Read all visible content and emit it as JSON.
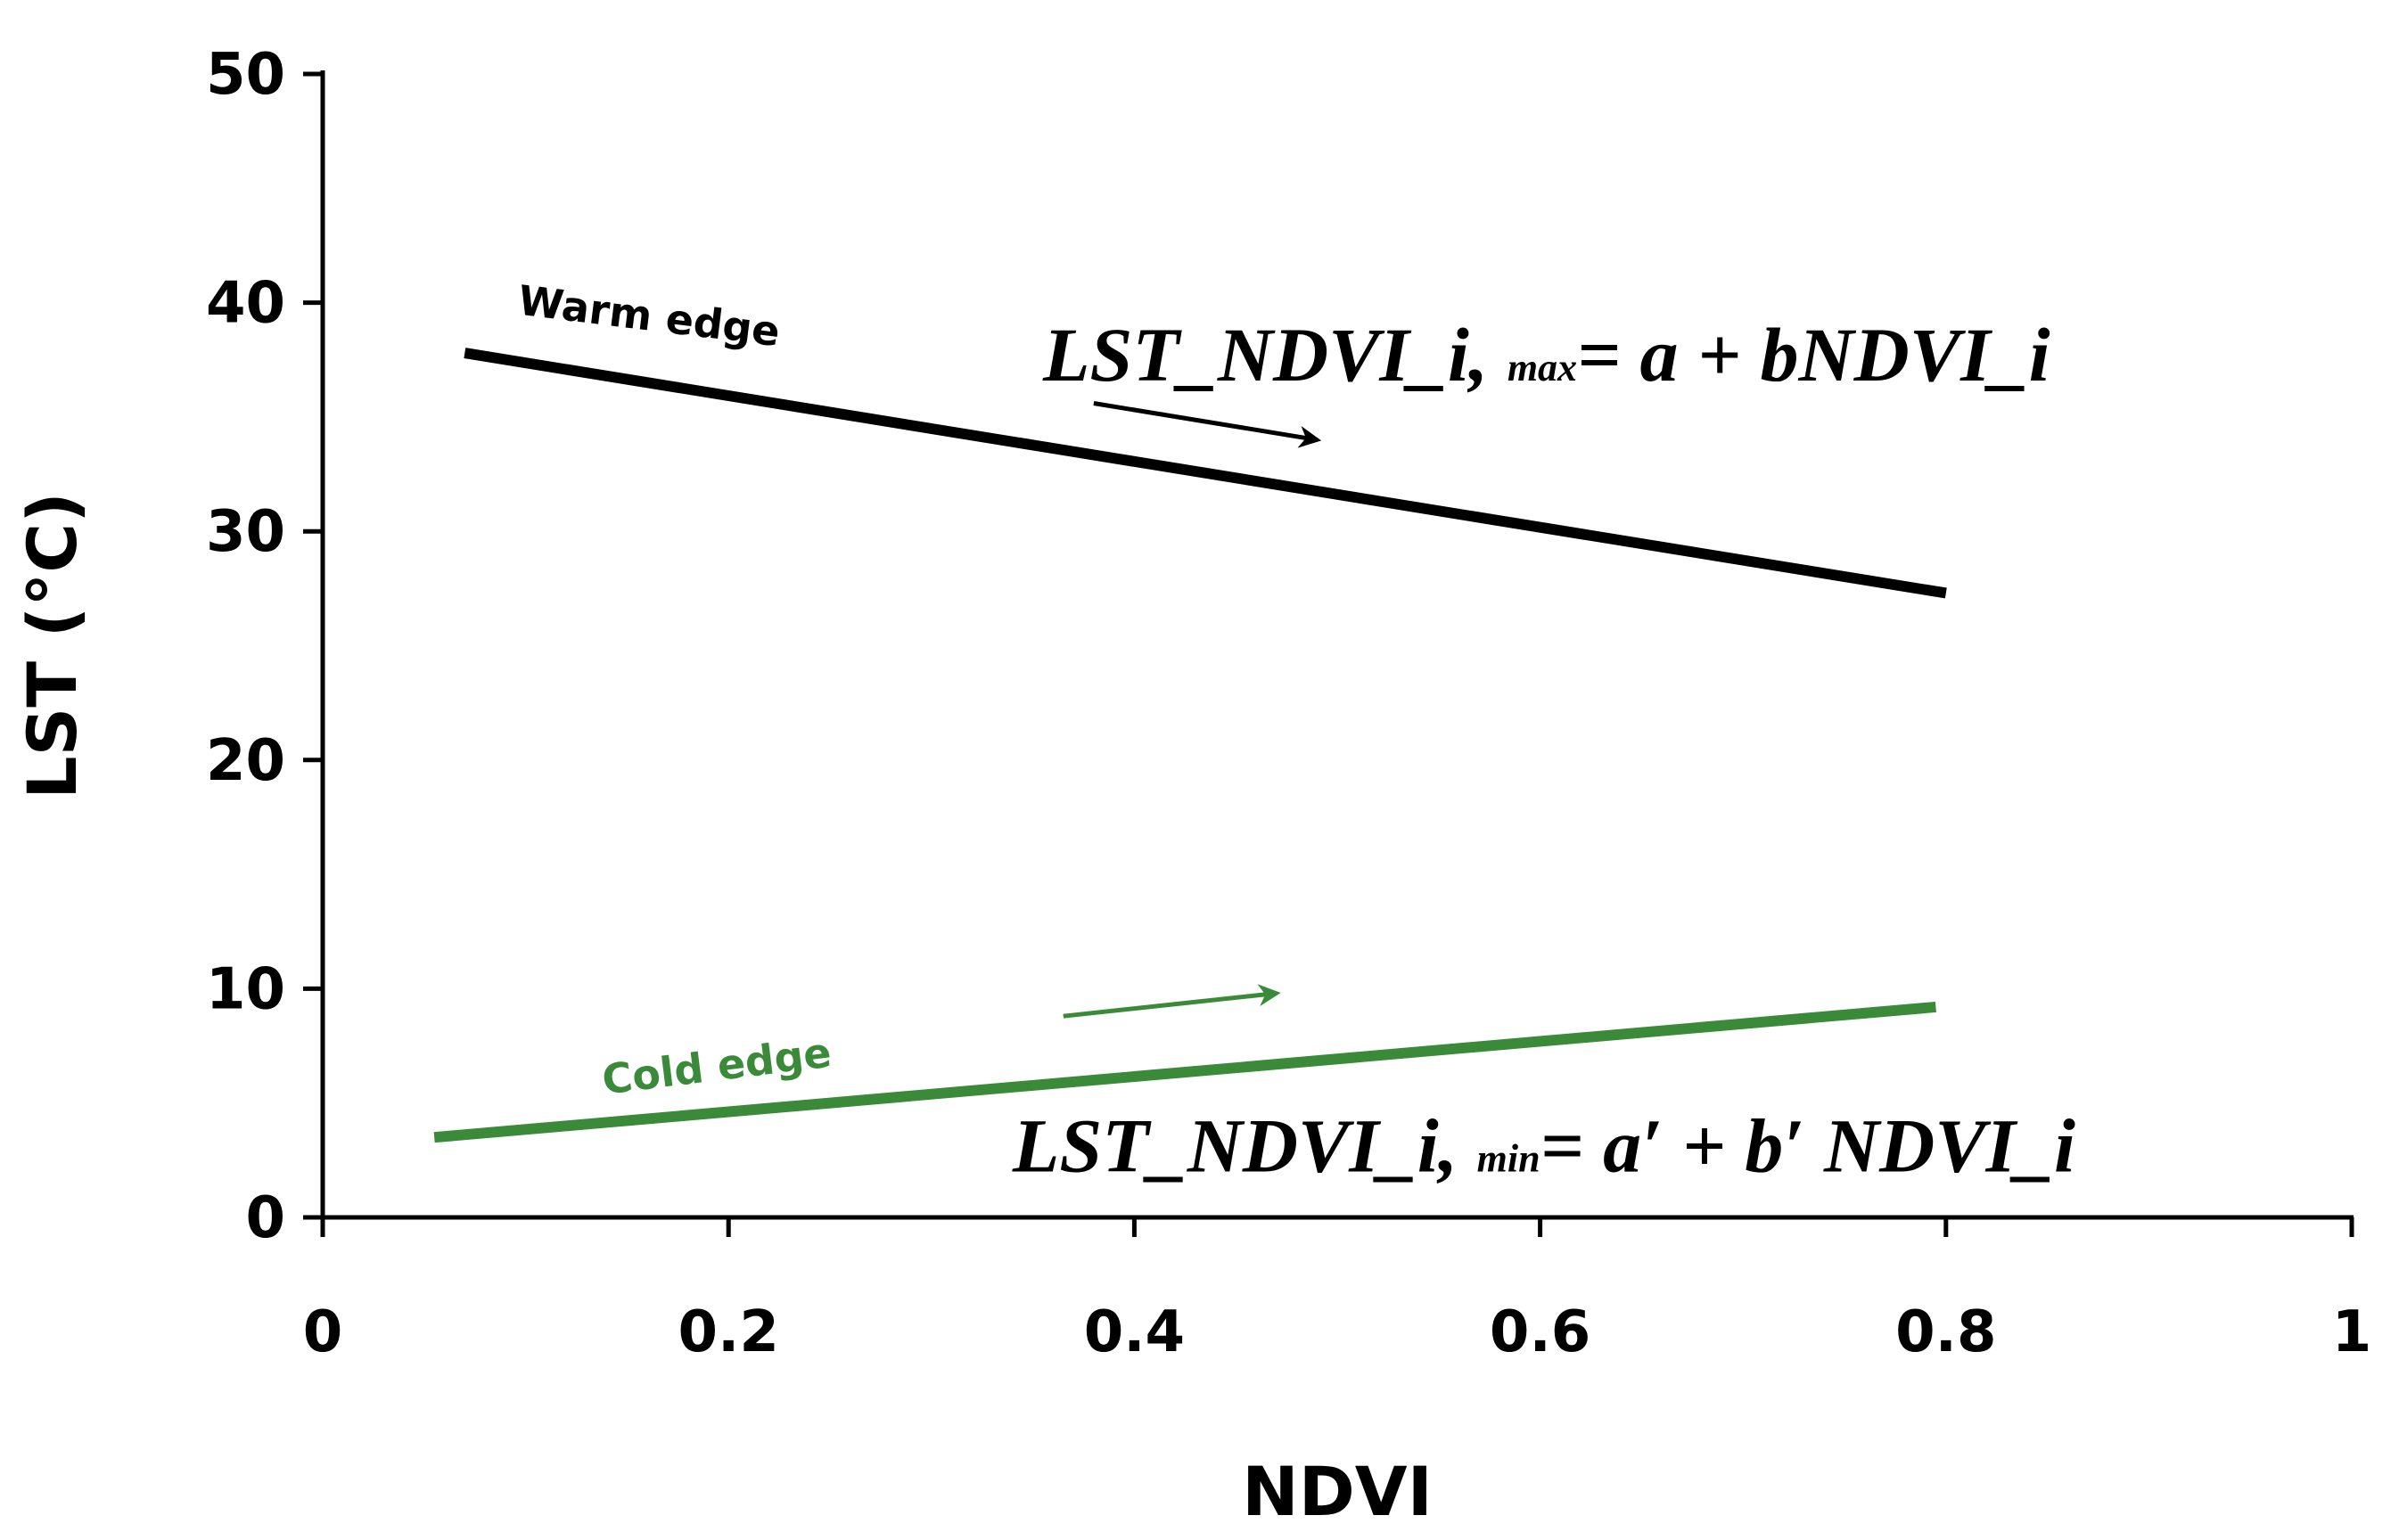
{
  "chart_data": {
    "type": "line",
    "title": "",
    "xlabel": "NDVI",
    "ylabel": "LST (°C)",
    "xlim": [
      0,
      1
    ],
    "ylim": [
      0,
      50
    ],
    "xticks": [
      {
        "value": 0,
        "label": "0"
      },
      {
        "value": 0.2,
        "label": "0.2"
      },
      {
        "value": 0.4,
        "label": "0.4"
      },
      {
        "value": 0.6,
        "label": "0.6"
      },
      {
        "value": 0.8,
        "label": "0.8"
      },
      {
        "value": 1,
        "label": "1"
      }
    ],
    "yticks": [
      {
        "value": 0,
        "label": "0"
      },
      {
        "value": 10,
        "label": "10"
      },
      {
        "value": 20,
        "label": "20"
      },
      {
        "value": 30,
        "label": "30"
      },
      {
        "value": 40,
        "label": "40"
      },
      {
        "value": 50,
        "label": "50"
      }
    ],
    "grid": false,
    "series": [
      {
        "name": "Warm edge",
        "color": "#000000",
        "x": [
          0.07,
          0.8
        ],
        "y": [
          37.8,
          27.3
        ],
        "label_anchor": {
          "x": 0.16,
          "y": 38.8
        },
        "label_angle_deg": 7,
        "arrow": {
          "x": [
            0.38,
            0.49
          ],
          "y": [
            35.6,
            34.0
          ]
        },
        "equation": {
          "lhs": "LST_NDVI_i, ",
          "sub": "max",
          "rhs": "= a + bNDVI_i",
          "anchor": {
            "x": 0.355,
            "y": 36.6
          }
        }
      },
      {
        "name": "Cold edge",
        "color": "#3a8a3a",
        "x": [
          0.055,
          0.795
        ],
        "y": [
          3.5,
          9.2
        ],
        "label_anchor": {
          "x": 0.195,
          "y": 6.0
        },
        "label_angle_deg": -7,
        "arrow": {
          "x": [
            0.365,
            0.47
          ],
          "y": [
            8.8,
            9.8
          ]
        },
        "equation": {
          "lhs": "LST_NDVI_i, ",
          "sub": "min",
          "rhs": "= a′ + b′ NDVI_i",
          "anchor": {
            "x": 0.34,
            "y": 2.0
          }
        }
      }
    ]
  }
}
